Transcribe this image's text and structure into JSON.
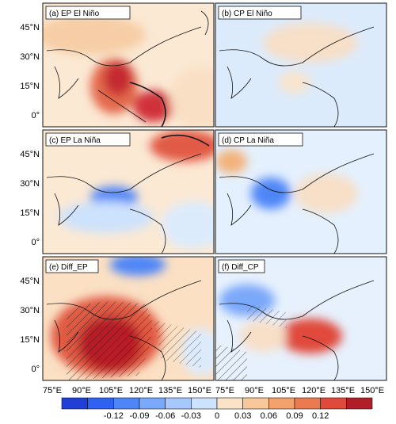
{
  "panels": [
    {
      "label": "(a) EP El Niño"
    },
    {
      "label": "(b) CP El Niño"
    },
    {
      "label": "(c) EP La Niña"
    },
    {
      "label": "(d) CP La Niña"
    },
    {
      "label": "(e) Diff_EP"
    },
    {
      "label": "(f) Diff_CP"
    }
  ],
  "axes": {
    "lat_ticks": [
      "45°N",
      "30°N",
      "15°N",
      "0°"
    ],
    "lon_ticks": [
      "75°E",
      "90°E",
      "105°E",
      "120°E",
      "135°E",
      "150°E"
    ]
  },
  "colorbar": {
    "ticks": [
      "-0.12",
      "-0.09",
      "-0.06",
      "-0.03",
      "0",
      "0.03",
      "0.06",
      "0.09",
      "0.12"
    ],
    "colors": [
      "#1f3fd6",
      "#2f62f2",
      "#4f86f7",
      "#7aa8fa",
      "#a6c8fc",
      "#cde2fd",
      "#fbe3c8",
      "#f8c79a",
      "#f3a26e",
      "#ec7a50",
      "#e04a3a",
      "#b11e28"
    ]
  }
}
